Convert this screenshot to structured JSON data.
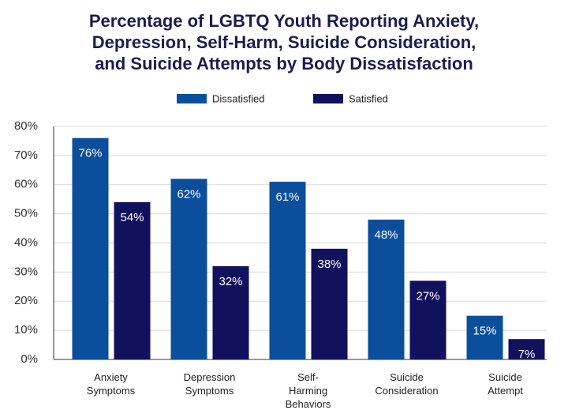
{
  "chart_data": {
    "type": "bar",
    "title": [
      "Percentage of LGBTQ Youth Reporting Anxiety,",
      "Depression, Self-Harm, Suicide Consideration,",
      "and Suicide Attempts by Body Dissatisfaction"
    ],
    "categories": [
      "Anxiety Symptoms",
      "Depression Symptoms",
      "Self-Harming Behaviors",
      "Suicide Consideration",
      "Suicide Attempt"
    ],
    "series": [
      {
        "name": "Dissatisfied",
        "color": "#0b4f9c",
        "values": [
          76,
          62,
          61,
          48,
          15
        ],
        "value_labels": [
          "76%",
          "62%",
          "61%",
          "48%",
          "15%"
        ]
      },
      {
        "name": "Satisfied",
        "color": "#12115e",
        "values": [
          54,
          32,
          38,
          27,
          7
        ],
        "value_labels": [
          "54%",
          "32%",
          "38%",
          "27%",
          "7%"
        ]
      }
    ],
    "ylim": [
      0,
      80
    ],
    "yticks": [
      {
        "value": 0,
        "label": "0%"
      },
      {
        "value": 10,
        "label": "10%"
      },
      {
        "value": 20,
        "label": "20%"
      },
      {
        "value": 30,
        "label": "30%"
      },
      {
        "value": 40,
        "label": "40%"
      },
      {
        "value": 50,
        "label": "50%"
      },
      {
        "value": 60,
        "label": "60%"
      },
      {
        "value": 70,
        "label": "70%"
      },
      {
        "value": 80,
        "label": "80%"
      }
    ],
    "grid": true,
    "legend": "top"
  }
}
